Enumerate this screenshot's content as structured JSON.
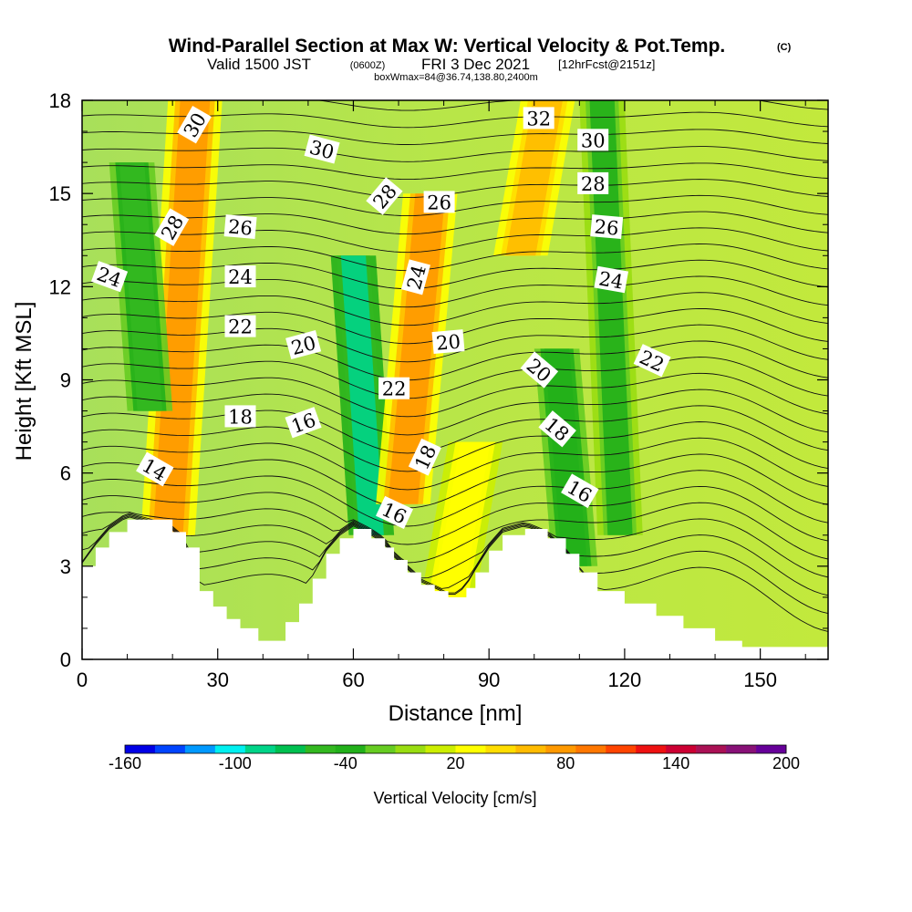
{
  "header": {
    "title": "Wind-Parallel Section at Max W: Vertical Velocity & Pot.Temp.",
    "copyright": "(C)",
    "valid_prefix": "Valid 1500 JST",
    "valid_utc": "(0600Z)",
    "valid_date": "FRI 3 Dec 2021",
    "forecast": "[12hrFcst@2151z]",
    "box_info": "boxWmax=84@36.74,138.80,2400m"
  },
  "chart_data": {
    "type": "heatmap",
    "title": "Wind-Parallel Section at Max W: Vertical Velocity & Pot.Temp.",
    "xlabel": "Distance [nm]",
    "ylabel": "Height [Kft MSL]",
    "xlim": [
      0,
      165
    ],
    "ylim": [
      0,
      18
    ],
    "x_ticks": [
      "0",
      "30",
      "60",
      "90",
      "120",
      "150"
    ],
    "y_ticks": [
      "0",
      "3",
      "6",
      "9",
      "12",
      "15",
      "18"
    ],
    "terrain_profile": {
      "x": [
        0,
        3,
        6,
        10,
        20,
        23,
        26,
        29,
        32,
        35,
        39,
        45,
        48,
        51,
        54,
        57,
        60,
        64,
        67,
        69,
        72,
        75,
        78,
        81,
        83,
        85,
        87,
        90,
        93,
        98,
        103,
        107,
        110,
        114,
        120,
        127,
        133,
        140,
        146,
        152,
        158,
        165
      ],
      "y_kft": [
        3.0,
        3.6,
        4.1,
        4.5,
        4.1,
        3.6,
        2.2,
        1.7,
        1.3,
        1.0,
        0.6,
        1.2,
        1.8,
        2.6,
        3.4,
        3.9,
        4.2,
        3.9,
        3.6,
        3.2,
        2.8,
        2.4,
        2.2,
        2.0,
        2.0,
        2.3,
        2.8,
        3.5,
        4.0,
        4.2,
        3.9,
        3.4,
        2.8,
        2.2,
        1.8,
        1.4,
        1.0,
        0.6,
        0.4,
        0.4,
        0.4,
        0.4
      ]
    },
    "vertical_velocity_features": [
      {
        "x": 22,
        "z_range": [
          4,
          18
        ],
        "w_cms": 100,
        "type": "updraft"
      },
      {
        "x": 13,
        "z_range": [
          8,
          16
        ],
        "w_cms": -60,
        "type": "downdraft"
      },
      {
        "x": 62,
        "z_range": [
          4,
          13
        ],
        "w_cms": -100,
        "type": "downdraft"
      },
      {
        "x": 74,
        "z_range": [
          5,
          15
        ],
        "w_cms": 100,
        "type": "updraft"
      },
      {
        "x": 84,
        "z_range": [
          2,
          7
        ],
        "w_cms": 40,
        "type": "updraft"
      },
      {
        "x": 100,
        "z_range": [
          13,
          18
        ],
        "w_cms": 80,
        "type": "updraft"
      },
      {
        "x": 107,
        "z_range": [
          3,
          10
        ],
        "w_cms": -50,
        "type": "downdraft"
      },
      {
        "x": 117,
        "z_range": [
          4,
          18
        ],
        "w_cms": -40,
        "type": "downdraft"
      }
    ],
    "theta_contour_labels": [
      {
        "text": "30",
        "x": 25,
        "z": 17.2,
        "angle": -60
      },
      {
        "text": "30",
        "x": 53,
        "z": 16.4,
        "angle": 15
      },
      {
        "text": "32",
        "x": 101,
        "z": 17.4,
        "angle": 0
      },
      {
        "text": "30",
        "x": 113,
        "z": 16.7,
        "angle": 0
      },
      {
        "text": "28",
        "x": 20,
        "z": 13.9,
        "angle": -60
      },
      {
        "text": "28",
        "x": 67,
        "z": 14.9,
        "angle": -50
      },
      {
        "text": "28",
        "x": 113,
        "z": 15.3,
        "angle": 0
      },
      {
        "text": "26",
        "x": 35,
        "z": 13.9,
        "angle": 5
      },
      {
        "text": "26",
        "x": 79,
        "z": 14.7,
        "angle": 0
      },
      {
        "text": "26",
        "x": 116,
        "z": 13.9,
        "angle": 5
      },
      {
        "text": "24",
        "x": 6,
        "z": 12.3,
        "angle": 20
      },
      {
        "text": "24",
        "x": 35,
        "z": 12.3,
        "angle": 0
      },
      {
        "text": "24",
        "x": 74,
        "z": 12.3,
        "angle": -75
      },
      {
        "text": "24",
        "x": 117,
        "z": 12.2,
        "angle": 10
      },
      {
        "text": "22",
        "x": 35,
        "z": 10.7,
        "angle": 0
      },
      {
        "text": "22",
        "x": 69,
        "z": 8.7,
        "angle": 0
      },
      {
        "text": "22",
        "x": 126,
        "z": 9.6,
        "angle": 25
      },
      {
        "text": "20",
        "x": 49,
        "z": 10.1,
        "angle": -15
      },
      {
        "text": "20",
        "x": 81,
        "z": 10.2,
        "angle": -5
      },
      {
        "text": "20",
        "x": 101,
        "z": 9.3,
        "angle": 40
      },
      {
        "text": "18",
        "x": 35,
        "z": 7.8,
        "angle": 0
      },
      {
        "text": "18",
        "x": 76,
        "z": 6.5,
        "angle": -65
      },
      {
        "text": "18",
        "x": 105,
        "z": 7.4,
        "angle": 40
      },
      {
        "text": "16",
        "x": 49,
        "z": 7.6,
        "angle": -20
      },
      {
        "text": "16",
        "x": 69,
        "z": 4.7,
        "angle": 25
      },
      {
        "text": "16",
        "x": 110,
        "z": 5.4,
        "angle": 30
      },
      {
        "text": "14",
        "x": 16,
        "z": 6.1,
        "angle": 30
      }
    ],
    "colorbar": {
      "label": "Vertical Velocity [cm/s]",
      "min": -160,
      "max": 200,
      "step": 20,
      "tick_labels": [
        "-160",
        "-100",
        "-40",
        "20",
        "80",
        "140",
        "200"
      ],
      "colors": [
        "#0000e6",
        "#0044ff",
        "#0099ff",
        "#00f0f0",
        "#00d488",
        "#00c050",
        "#33b820",
        "#22b01a",
        "#66cc22",
        "#99dd11",
        "#ccee00",
        "#ffff00",
        "#ffdd00",
        "#ffbb00",
        "#ff9900",
        "#ff7700",
        "#ff4400",
        "#ee1111",
        "#cc0033",
        "#aa1155",
        "#881177",
        "#660099"
      ]
    }
  }
}
